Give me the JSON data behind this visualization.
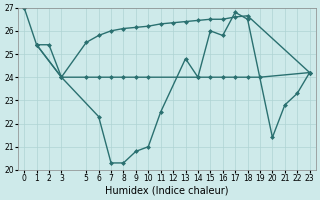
{
  "line1_x": [
    0,
    1,
    2,
    3,
    6,
    7,
    8,
    9,
    10,
    11,
    13,
    14,
    15,
    16,
    17,
    18,
    20,
    21,
    22,
    23
  ],
  "line1_y": [
    27.0,
    25.4,
    25.4,
    24.0,
    22.3,
    20.3,
    20.3,
    20.8,
    21.0,
    22.5,
    24.8,
    24.0,
    26.0,
    25.8,
    26.8,
    26.5,
    21.4,
    22.8,
    23.3,
    24.2
  ],
  "line2_x": [
    1,
    3,
    5,
    6,
    7,
    8,
    9,
    10,
    11,
    12,
    13,
    14,
    15,
    16,
    17,
    18,
    23
  ],
  "line2_y": [
    25.4,
    24.0,
    25.5,
    25.8,
    26.0,
    26.1,
    26.15,
    26.2,
    26.3,
    26.35,
    26.4,
    26.45,
    26.5,
    26.5,
    26.6,
    26.65,
    24.2
  ],
  "line3_x": [
    1,
    3,
    5,
    6,
    7,
    8,
    9,
    10,
    14,
    15,
    16,
    17,
    18,
    19,
    23
  ],
  "line3_y": [
    25.4,
    24.0,
    24.0,
    24.0,
    24.0,
    24.0,
    24.0,
    24.0,
    24.0,
    24.0,
    24.0,
    24.0,
    24.0,
    24.0,
    24.2
  ],
  "line_color": "#2a7070",
  "marker": "D",
  "markersize": 2.5,
  "linewidth": 1.0,
  "bg_color": "#ceeaea",
  "grid_color": "#afd4d4",
  "xlabel": "Humidex (Indice chaleur)",
  "xlabel_fontsize": 7,
  "tick_fontsize": 5.5,
  "ylim": [
    20,
    27
  ],
  "xlim": [
    -0.5,
    23.5
  ],
  "yticks": [
    20,
    21,
    22,
    23,
    24,
    25,
    26,
    27
  ],
  "xticks": [
    0,
    1,
    2,
    3,
    5,
    6,
    7,
    8,
    9,
    10,
    11,
    12,
    13,
    14,
    15,
    16,
    17,
    18,
    19,
    20,
    21,
    22,
    23
  ]
}
